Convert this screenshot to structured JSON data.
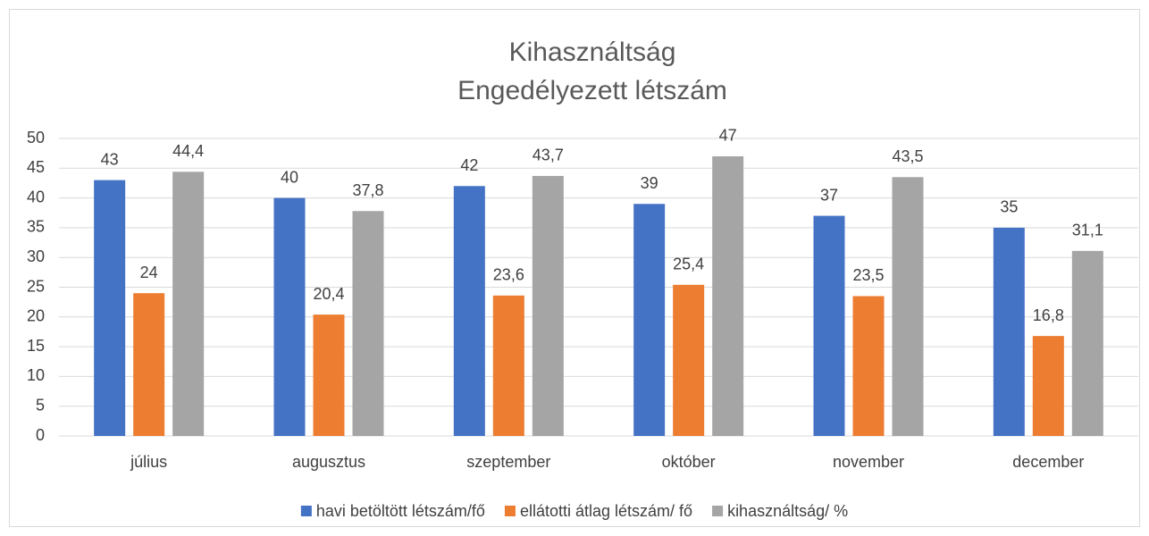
{
  "chart_data": {
    "type": "bar",
    "title": [
      "Kihasználtság",
      "Engedélyezett létszám"
    ],
    "categories": [
      "július",
      "augusztus",
      "szeptember",
      "október",
      "november",
      "december"
    ],
    "series": [
      {
        "name": "havi betöltött létszám/fő",
        "color": "#4472c4",
        "values": [
          43,
          40,
          42,
          39,
          37,
          35
        ],
        "value_labels": [
          "43",
          "40",
          "42",
          "39",
          "37",
          "35"
        ]
      },
      {
        "name": "ellátotti átlag létszám/ fő",
        "color": "#ed7d31",
        "values": [
          24,
          20.4,
          23.6,
          25.4,
          23.5,
          16.8
        ],
        "value_labels": [
          "24",
          "20,4",
          "23,6",
          "25,4",
          "23,5",
          "16,8"
        ]
      },
      {
        "name": "kihasználtság/ %",
        "color": "#a5a5a5",
        "values": [
          44.4,
          37.8,
          43.7,
          47,
          43.5,
          31.1
        ],
        "value_labels": [
          "44,4",
          "37,8",
          "43,7",
          "47",
          "43,5",
          "31,1"
        ]
      }
    ],
    "ylim": [
      0,
      50
    ],
    "yticks": [
      0,
      5,
      10,
      15,
      20,
      25,
      30,
      35,
      40,
      45,
      50
    ],
    "grid": true,
    "legend": "bottom"
  }
}
